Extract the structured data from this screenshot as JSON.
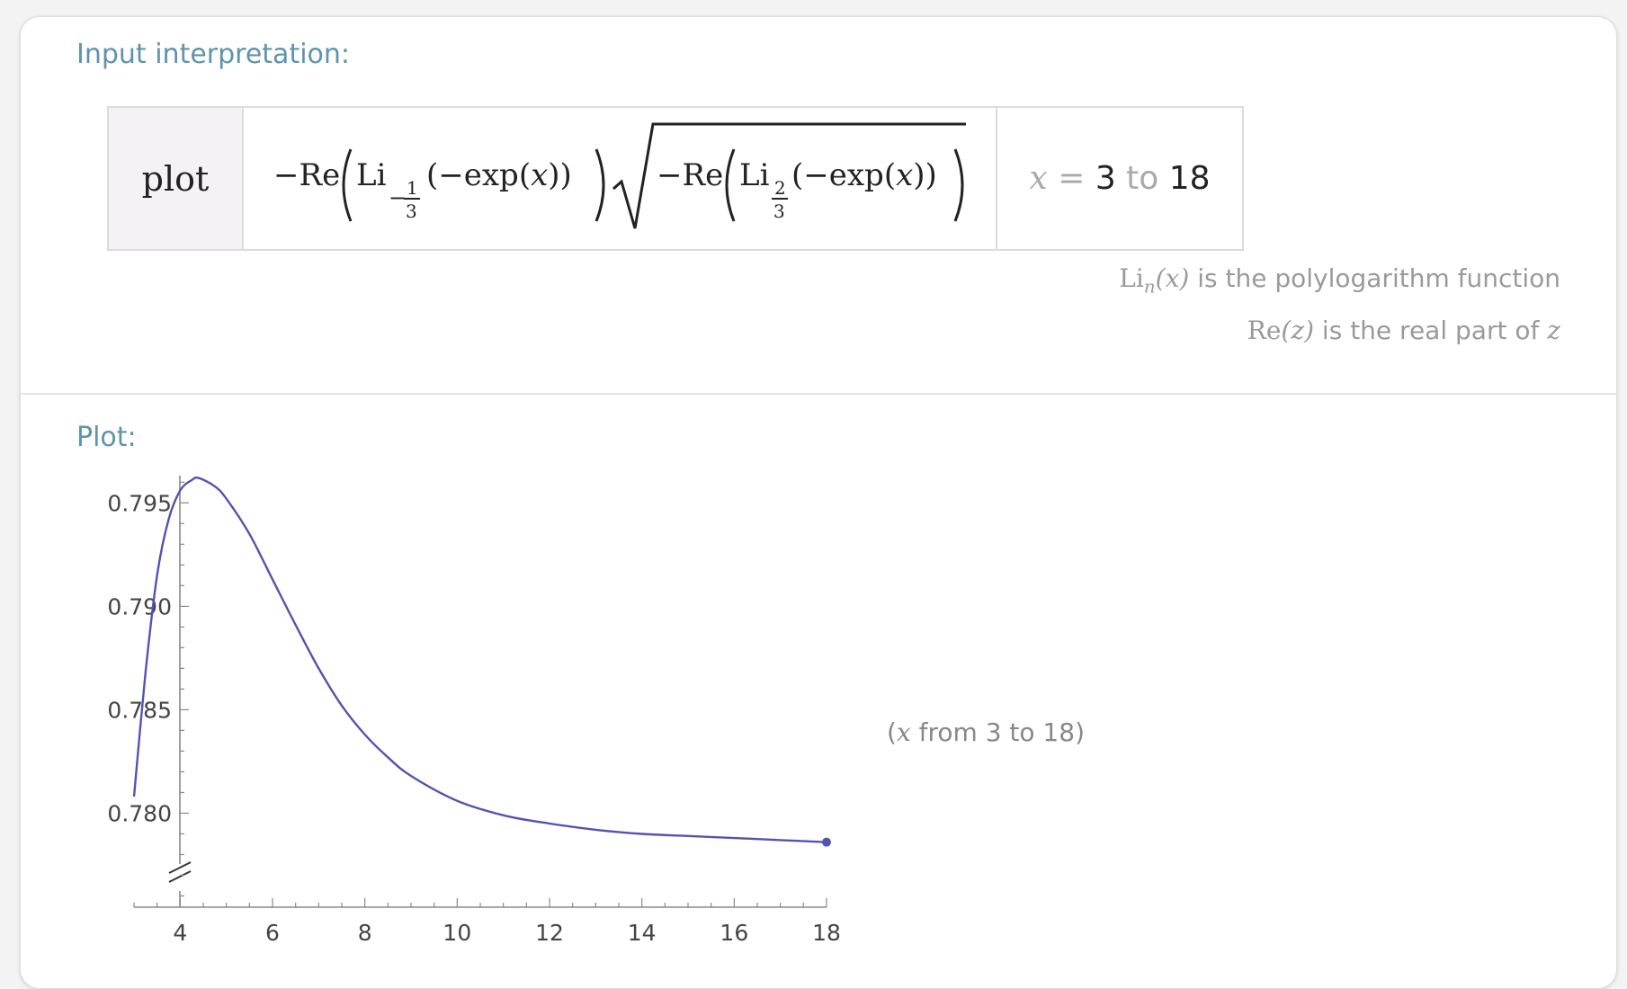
{
  "pods": {
    "input": {
      "title": "Input interpretation:",
      "command": "plot",
      "range_var": "x",
      "range_eq": "=",
      "range_from": "3",
      "range_to_word": "to",
      "range_to": "18",
      "notes": [
        {
          "fn": "Li",
          "sub": "n",
          "arg": "(x)",
          "text": " is the polylogarithm function"
        },
        {
          "fn": "Re",
          "arg": "(z)",
          "text": " is the real part of ",
          "tail": "z"
        }
      ]
    },
    "plot": {
      "title": "Plot:",
      "caption_open": "(",
      "caption_var": "x",
      "caption_text": " from 3 to 18",
      "caption_close": ")"
    }
  },
  "colors": {
    "pod_title": "#5f94a9",
    "curve": "#5353b0"
  },
  "chart_data": {
    "type": "line",
    "title": "",
    "xlabel": "",
    "ylabel": "",
    "xlim": [
      3,
      18
    ],
    "ylim": [
      0.7755,
      0.7961
    ],
    "x_ticks": [
      4,
      6,
      8,
      10,
      12,
      14,
      16,
      18
    ],
    "y_ticks": [
      0.78,
      0.785,
      0.79,
      0.795
    ],
    "y_tick_labels": [
      "0.780",
      "0.785",
      "0.790",
      "0.795"
    ],
    "axis_break": true,
    "grid": false,
    "series": [
      {
        "x": [
          3.0,
          3.25,
          3.5,
          3.75,
          4.0,
          4.25,
          4.4,
          4.75,
          5.0,
          5.5,
          6.0,
          6.5,
          7.0,
          7.5,
          8.0,
          8.5,
          9.0,
          10.0,
          11.0,
          12.0,
          13.0,
          14.0,
          15.0,
          16.0,
          17.0,
          18.0
        ],
        "y": [
          0.7808,
          0.7868,
          0.7915,
          0.7942,
          0.7956,
          0.7961,
          0.7962,
          0.7958,
          0.7952,
          0.7935,
          0.7913,
          0.7891,
          0.787,
          0.7852,
          0.7838,
          0.7827,
          0.7818,
          0.7806,
          0.7799,
          0.7795,
          0.7792,
          0.779,
          0.7789,
          0.7788,
          0.7787,
          0.7786
        ]
      }
    ]
  }
}
